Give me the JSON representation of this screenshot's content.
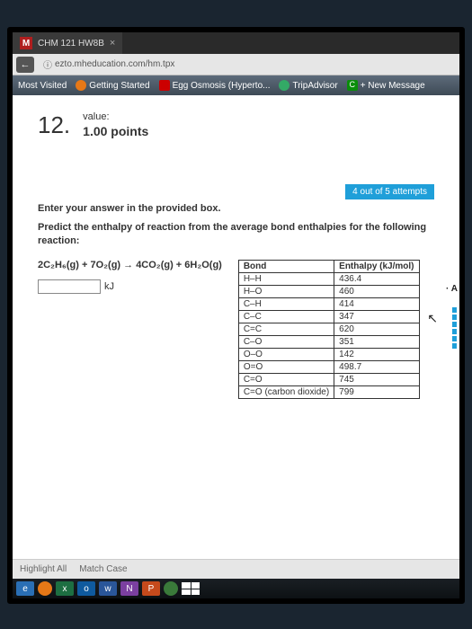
{
  "tab": {
    "title": "CHM 121 HW8B"
  },
  "url": "ezto.mheducation.com/hm.tpx",
  "bookmarks": {
    "mv": "Most Visited",
    "gs": "Getting Started",
    "eo": "Egg Osmosis (Hyperto...",
    "ta": "TripAdvisor",
    "nm": "+ New Message"
  },
  "question": {
    "number": "12.",
    "value_label": "value:",
    "points": "1.00 points",
    "attempts": "4 out of 5 attempts",
    "enter": "Enter your answer in the provided box.",
    "prompt": "Predict the enthalpy of reaction from the average bond enthalpies for the following reaction:",
    "equation": "2C₂H₆(g) + 7O₂(g) → 4CO₂(g) + 6H₂O(g)",
    "unit": "kJ"
  },
  "table": {
    "h1": "Bond",
    "h2": "Enthalpy (kJ/mol)",
    "rows": [
      [
        "H–H",
        "436.4"
      ],
      [
        "H–O",
        "460"
      ],
      [
        "C–H",
        "414"
      ],
      [
        "C–C",
        "347"
      ],
      [
        "C=C",
        "620"
      ],
      [
        "C–O",
        "351"
      ],
      [
        "O–O",
        "142"
      ],
      [
        "O=O",
        "498.7"
      ],
      [
        "C=O",
        "745"
      ],
      [
        "C=O (carbon dioxide)",
        "799"
      ]
    ]
  },
  "findbar": {
    "hl": "Highlight All",
    "mc": "Match Case"
  }
}
